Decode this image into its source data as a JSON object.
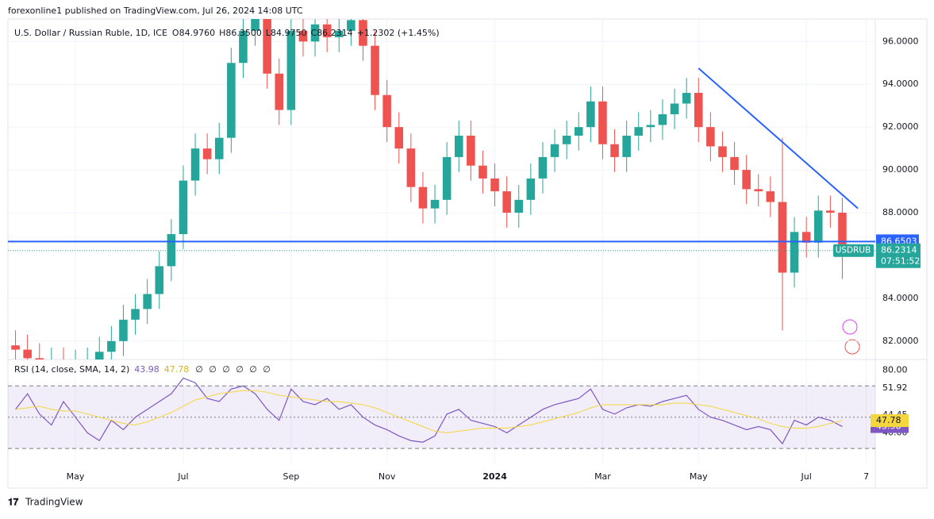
{
  "header": {
    "publisher": "forexonline1 published on TradingView.com, Jul 26, 2024 14:08 UTC"
  },
  "chart_data": {
    "type": "candlestick",
    "title": "U.S. Dollar / Russian Ruble, 1D, ICE",
    "ohlc": [
      {
        "label": "O",
        "value": "84.9760"
      },
      {
        "label": "H",
        "value": "86.3500"
      },
      {
        "label": "L",
        "value": "84.9750"
      },
      {
        "label": "C",
        "value": "86.2314"
      }
    ],
    "change": "+1.2302 (+1.45%)",
    "categories": [
      null,
      null,
      null,
      null,
      null,
      "May",
      null,
      null,
      null,
      null,
      null,
      null,
      null,
      null,
      "Jul",
      null,
      null,
      null,
      null,
      null,
      null,
      null,
      null,
      "Sep",
      null,
      null,
      null,
      null,
      null,
      null,
      null,
      "Nov",
      null,
      null,
      null,
      null,
      null,
      null,
      null,
      null,
      "2024",
      null,
      null,
      null,
      null,
      null,
      null,
      null,
      null,
      "Mar",
      null,
      null,
      null,
      null,
      null,
      null,
      null,
      "May",
      null,
      null,
      null,
      null,
      null,
      null,
      null,
      null,
      "Jul",
      null,
      null,
      null,
      null,
      "7"
    ],
    "open": [
      81.8,
      81.6,
      81.2,
      80.8,
      81.0,
      80.6,
      80.9,
      81.0,
      81.5,
      82.0,
      83.0,
      83.5,
      84.2,
      85.5,
      87.0,
      89.5,
      91.0,
      90.5,
      91.5,
      95.0,
      96.5,
      97.5,
      94.5,
      92.8,
      96.5,
      96.0,
      96.8,
      96.2,
      96.5,
      97.0,
      95.8,
      93.5,
      92.0,
      91.0,
      89.2,
      88.2,
      88.6,
      90.6,
      91.6,
      90.2,
      89.6,
      89.0,
      88.0,
      88.6,
      89.6,
      90.6,
      91.2,
      91.6,
      92.0,
      93.2,
      91.2,
      90.6,
      91.6,
      92.0,
      92.1,
      92.6,
      93.1,
      93.6,
      92.0,
      91.1,
      90.6,
      90.0,
      89.1,
      89.0,
      88.5,
      85.2,
      87.1,
      86.6,
      88.1,
      88.0,
      null,
      null
    ],
    "high": [
      82.5,
      82.3,
      81.9,
      81.7,
      81.7,
      81.6,
      81.7,
      82.2,
      82.7,
      83.7,
      84.2,
      84.9,
      86.2,
      87.7,
      90.2,
      91.7,
      91.7,
      92.2,
      95.7,
      97.2,
      98.2,
      98.2,
      95.2,
      97.2,
      97.2,
      97.5,
      97.5,
      97.2,
      97.7,
      97.7,
      96.5,
      94.2,
      92.7,
      91.7,
      89.9,
      89.3,
      91.3,
      92.3,
      92.3,
      90.9,
      90.3,
      89.7,
      89.3,
      90.3,
      91.3,
      91.9,
      92.3,
      92.7,
      93.9,
      93.9,
      91.9,
      92.3,
      92.7,
      92.8,
      93.3,
      93.8,
      94.3,
      94.3,
      92.7,
      91.8,
      91.3,
      90.7,
      89.8,
      89.7,
      91.5,
      87.8,
      87.8,
      88.8,
      88.8,
      88.7,
      null,
      null
    ],
    "low": [
      80.9,
      80.5,
      80.1,
      80.1,
      79.9,
      79.9,
      80.2,
      80.3,
      80.8,
      81.3,
      82.3,
      82.8,
      83.5,
      84.8,
      86.3,
      88.8,
      89.8,
      89.8,
      90.8,
      94.3,
      95.8,
      93.8,
      92.1,
      92.1,
      95.3,
      95.3,
      95.5,
      95.5,
      95.8,
      95.1,
      92.8,
      91.3,
      90.3,
      88.5,
      87.5,
      87.5,
      87.9,
      89.9,
      89.5,
      88.9,
      88.3,
      87.3,
      87.3,
      87.9,
      88.9,
      89.9,
      90.5,
      90.9,
      91.3,
      90.5,
      89.9,
      89.9,
      90.9,
      91.3,
      91.4,
      91.9,
      92.4,
      91.3,
      90.4,
      89.9,
      89.3,
      88.4,
      88.3,
      87.8,
      82.5,
      84.5,
      85.9,
      85.9,
      87.3,
      84.9,
      null,
      null
    ],
    "close": [
      81.6,
      81.2,
      80.8,
      81.0,
      80.6,
      80.9,
      81.0,
      81.5,
      82.0,
      83.0,
      83.5,
      84.2,
      85.5,
      87.0,
      89.5,
      91.0,
      90.5,
      91.5,
      95.0,
      96.5,
      97.5,
      94.5,
      92.8,
      96.5,
      96.0,
      96.8,
      96.2,
      96.5,
      97.0,
      95.8,
      93.5,
      92.0,
      91.0,
      89.2,
      88.2,
      88.6,
      90.6,
      91.6,
      90.2,
      89.6,
      89.0,
      88.0,
      88.6,
      89.6,
      90.6,
      91.2,
      91.6,
      92.0,
      93.2,
      91.2,
      90.6,
      91.6,
      92.0,
      92.1,
      92.6,
      93.1,
      93.6,
      92.0,
      91.1,
      90.6,
      90.0,
      89.1,
      89.0,
      88.5,
      85.2,
      87.1,
      86.6,
      88.1,
      88.0,
      86.23,
      null,
      null
    ],
    "up_color": "#26a69a",
    "down_color": "#ef5350",
    "ylim": [
      81.14,
      97.05
    ],
    "yticks": [
      {
        "value": 96,
        "label": "96.0000"
      },
      {
        "value": 94,
        "label": "94.0000"
      },
      {
        "value": 92,
        "label": "92.0000"
      },
      {
        "value": 90,
        "label": "90.0000"
      },
      {
        "value": 88,
        "label": "88.0000"
      },
      {
        "value": 84,
        "label": "84.0000"
      },
      {
        "value": 82,
        "label": "82.0000"
      }
    ],
    "grid": true,
    "support": {
      "value": 86.6503,
      "label": "86.6503",
      "color": "#2962ff"
    },
    "last": {
      "symbol": "USDRUB",
      "value": 86.2314,
      "label": "86.2314",
      "countdown": "07:51:52",
      "color": "#26a69a"
    },
    "trendline": {
      "points": [
        [
          57,
          94.75
        ],
        [
          70.3,
          88.2
        ]
      ],
      "color": "#2962ff"
    },
    "rsi": {
      "title": "RSI (14, close, SMA, 14, 2)",
      "value_label": "43.98",
      "sma_label": "47.78",
      "empty_labels": [
        "∅",
        "∅",
        "∅",
        "∅",
        "∅",
        "∅"
      ],
      "ylim": [
        20.4,
        86.4
      ],
      "yticks": [
        {
          "value": 80,
          "label": "80.00"
        },
        {
          "value": 40,
          "label": "40.00"
        }
      ],
      "bands": [
        70,
        50,
        30
      ],
      "extra_labels": [
        "51.92",
        "44.45"
      ],
      "series": [
        {
          "name": "RSI",
          "color": "#7e57c2",
          "values": [
            55,
            65,
            52,
            45,
            60,
            50,
            40,
            35,
            48,
            42,
            50,
            55,
            60,
            65,
            75,
            72,
            62,
            60,
            68,
            70,
            65,
            55,
            48,
            68,
            60,
            58,
            62,
            55,
            58,
            50,
            45,
            42,
            38,
            35,
            34,
            38,
            52,
            55,
            48,
            46,
            44,
            40,
            45,
            50,
            55,
            58,
            60,
            62,
            68,
            55,
            52,
            56,
            58,
            57,
            60,
            62,
            64,
            55,
            50,
            48,
            45,
            42,
            44,
            42,
            33,
            48,
            45,
            50,
            48,
            43.98,
            null,
            null
          ]
        },
        {
          "name": "SMA",
          "color": "#f5d63d",
          "values": [
            55,
            56,
            57,
            55,
            54,
            54,
            52,
            50,
            48,
            46,
            45,
            47,
            50,
            53,
            57,
            61,
            63,
            65,
            66,
            67,
            67,
            66,
            64,
            63,
            62,
            61,
            60,
            60,
            59,
            58,
            56,
            53,
            50,
            47,
            44,
            41,
            40,
            41,
            42,
            43,
            43,
            43,
            44,
            45,
            47,
            49,
            51,
            53,
            56,
            58,
            58,
            58,
            58,
            58,
            58,
            59,
            59,
            58,
            57,
            55,
            53,
            51,
            49,
            46,
            44,
            43,
            43,
            44,
            46,
            47.78,
            null,
            null
          ]
        }
      ]
    }
  },
  "footer": {
    "brand": "TradingView"
  }
}
